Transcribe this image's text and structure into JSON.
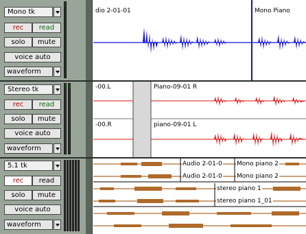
{
  "tracks": [
    {
      "name": "Mono tk",
      "rec": "rec",
      "input": "read",
      "solo": "solo",
      "mute": "mute",
      "voice": "voice auto",
      "view": "waveform",
      "clips": [
        "dio 2-01-01",
        "Mono Piano"
      ]
    },
    {
      "name": "Stereo tk",
      "rec": "rec",
      "input": "read",
      "solo": "solo",
      "mute": "mute",
      "voice": "voice auto",
      "view": "waveform",
      "channels": [
        {
          "label": "-00.L",
          "clip": "Piano-09-01 R"
        },
        {
          "label": "-00.R",
          "clip": "piano-09-01 L"
        }
      ]
    },
    {
      "name": "5.1 tk",
      "rec": "rec",
      "input": "read",
      "solo": "solo",
      "mute": "mute",
      "voice": "voice auto",
      "view": "waveform",
      "clips": [
        "Audio 2-01-0",
        "Mono piano 2",
        "Audio 2-01-0",
        "Mono piano 2",
        "stereo piano 1",
        "stereo piano 1_01"
      ]
    }
  ],
  "colors": {
    "mono_wave": "#1010e0",
    "stereo_wave": "#e01010",
    "surround_wave": "#b06a2a",
    "header_bg": "#9aa59a"
  }
}
